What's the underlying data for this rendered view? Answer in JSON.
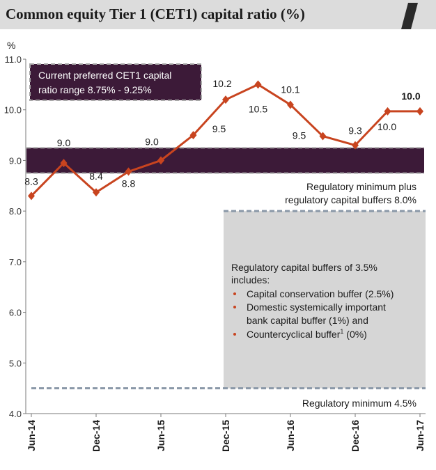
{
  "header": {
    "title": "Common equity Tier 1 (CET1) capital ratio (%)"
  },
  "colors": {
    "line": "#c8441f",
    "band": "#3c1a38",
    "band_border": "#a8a8a8",
    "buffer_box": "#d6d6d6",
    "dashed_line": "#8a98a8",
    "axis": "#7a7a7a",
    "text": "#1a1a1a"
  },
  "chart_data": {
    "type": "line",
    "ylabel": "%",
    "ylim": [
      4.0,
      11.0
    ],
    "yticks": [
      "4.0",
      "5.0",
      "6.0",
      "7.0",
      "8.0",
      "9.0",
      "10.0",
      "11.0"
    ],
    "xtick_labels": [
      "Jun-14",
      "Dec-14",
      "Jun-15",
      "Dec-15",
      "Jun-16",
      "Dec-16",
      "Jun-17"
    ],
    "x": [
      "Jun-14",
      "Sep-14",
      "Dec-14",
      "Mar-15",
      "Jun-15",
      "Sep-15",
      "Dec-15",
      "Mar-16",
      "Jun-16",
      "Sep-16",
      "Dec-16",
      "Mar-17",
      "Jun-17"
    ],
    "series": [
      {
        "values": [
          8.3,
          8.95,
          8.37,
          8.78,
          9.0,
          9.5,
          10.2,
          10.5,
          10.1,
          9.48,
          9.3,
          9.97,
          9.97
        ]
      }
    ],
    "data_labels": [
      "8.3",
      "9.0",
      "8.4",
      "8.8",
      "9.0",
      "9.5",
      "10.2",
      "10.5",
      "10.1",
      "9.5",
      "9.3",
      "10.0",
      "10.0"
    ],
    "preferred_range": {
      "low": 8.75,
      "high": 9.25,
      "label": "Current preferred CET1 capital ratio range 8.75% - 9.25%"
    },
    "regulatory_minimum_plus_buffers": {
      "value": 8.0,
      "label_line1": "Regulatory minimum plus",
      "label_line2": "regulatory capital buffers 8.0%"
    },
    "regulatory_minimum": {
      "value": 4.5,
      "label": "Regulatory minimum 4.5%"
    },
    "buffer_box": {
      "heading_line1": "Regulatory capital buffers of 3.5%",
      "heading_line2": "includes:",
      "bullets": [
        {
          "line1": "Capital conservation buffer (2.5%)"
        },
        {
          "line1": "Domestic systemically important",
          "line2": "bank capital buffer (1%) and"
        },
        {
          "line1": "Countercyclical buffer",
          "sup": "1",
          "rest": " (0%)"
        }
      ]
    }
  }
}
